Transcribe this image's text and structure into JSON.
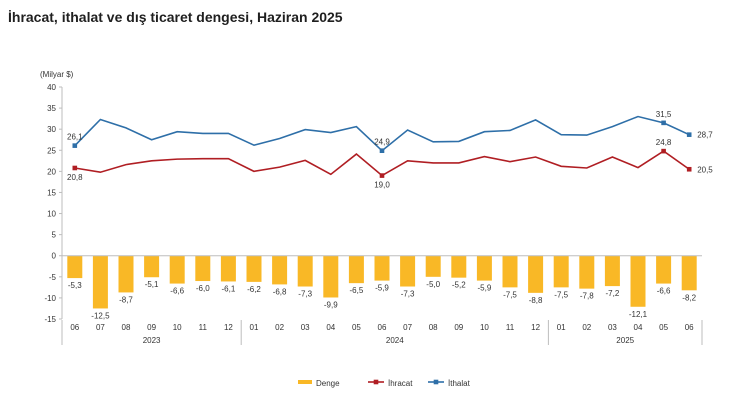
{
  "title": "İhracat, ithalat ve dış ticaret dengesi, Haziran 2025",
  "chart_data": {
    "type": "bar+line",
    "title": "İhracat, ithalat ve dış ticaret dengesi, Haziran 2025",
    "ylabel": "(Milyar $)",
    "ylim": [
      -15,
      40
    ],
    "yticks": [
      40,
      35,
      30,
      25,
      20,
      15,
      10,
      5,
      0,
      -5,
      -10,
      -15
    ],
    "categories": [
      "06",
      "07",
      "08",
      "09",
      "10",
      "11",
      "12",
      "01",
      "02",
      "03",
      "04",
      "05",
      "06",
      "07",
      "08",
      "09",
      "10",
      "11",
      "12",
      "01",
      "02",
      "03",
      "04",
      "05",
      "06"
    ],
    "years": [
      {
        "label": "2023",
        "start": 0,
        "end": 6
      },
      {
        "label": "2024",
        "start": 7,
        "end": 18
      },
      {
        "label": "2025",
        "start": 19,
        "end": 24
      }
    ],
    "series": [
      {
        "name": "Denge",
        "type": "bar",
        "color": "#f9b826",
        "values": [
          -5.3,
          -12.5,
          -8.7,
          -5.1,
          -6.6,
          -6.0,
          -6.1,
          -6.2,
          -6.8,
          -7.3,
          -9.9,
          -6.5,
          -5.9,
          -7.3,
          -5.0,
          -5.2,
          -5.9,
          -7.5,
          -8.8,
          -7.5,
          -7.8,
          -7.2,
          -12.1,
          -6.6,
          -8.2
        ],
        "labels": [
          "-5,3",
          "-12,5",
          "-8,7",
          "-5,1",
          "-6,6",
          "-6,0",
          "-6,1",
          "-6,2",
          "-6,8",
          "-7,3",
          "-9,9",
          "-6,5",
          "-5,9",
          "-7,3",
          "-5,0",
          "-5,2",
          "-5,9",
          "-7,5",
          "-8,8",
          "-7,5",
          "-7,8",
          "-7,2",
          "-12,1",
          "-6,6",
          "-8,2"
        ]
      },
      {
        "name": "İhracat",
        "type": "line",
        "color": "#b01e23",
        "values": [
          20.8,
          19.8,
          21.6,
          22.5,
          22.9,
          23.0,
          23.0,
          20.0,
          21.0,
          22.6,
          19.3,
          24.1,
          19.0,
          22.5,
          22.0,
          22.0,
          23.5,
          22.3,
          23.4,
          21.2,
          20.8,
          23.4,
          20.9,
          24.8,
          20.5
        ],
        "labeled": {
          "0": "20,8",
          "12": "19,0",
          "23": "24,8",
          "24": "20,5"
        }
      },
      {
        "name": "İthalat",
        "type": "line",
        "color": "#2e6fa8",
        "values": [
          26.1,
          32.3,
          30.3,
          27.5,
          29.4,
          29.0,
          29.0,
          26.2,
          27.8,
          29.9,
          29.2,
          30.6,
          24.9,
          29.8,
          27.0,
          27.1,
          29.4,
          29.7,
          32.2,
          28.7,
          28.6,
          30.6,
          33.0,
          31.5,
          28.7
        ],
        "labeled": {
          "0": "26,1",
          "12": "24,9",
          "23": "31,5",
          "24": "28,7"
        }
      }
    ],
    "legend_position": "bottom",
    "grid": false
  }
}
